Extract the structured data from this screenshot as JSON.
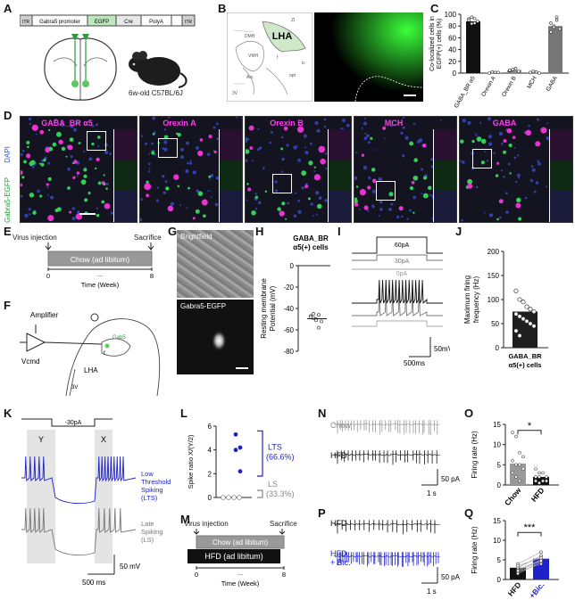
{
  "panel_letters": [
    "A",
    "B",
    "C",
    "D",
    "E",
    "F",
    "G",
    "H",
    "I",
    "J",
    "K",
    "L",
    "M",
    "N",
    "O",
    "P",
    "Q"
  ],
  "A": {
    "construct": [
      "ITR",
      "Gabra5 promoter",
      "EGFP",
      "Cre",
      "PolyA",
      "ITR"
    ],
    "mouse_label": "6w-old C57BL/6J"
  },
  "B": {
    "region_label": "LHA",
    "atlas_labels": [
      "VMH",
      "DMH",
      "Arc",
      "3V",
      "f",
      "opt",
      "ic",
      "ZI"
    ]
  },
  "C": {
    "chart_data": {
      "type": "bar",
      "categories": [
        "GABA_BR α5",
        "Orexin A",
        "Orexin B",
        "MCH",
        "GABA"
      ],
      "values": [
        88,
        1,
        5,
        2,
        80
      ],
      "points": [
        [
          92,
          95,
          85,
          88,
          90,
          84,
          93
        ],
        [
          0,
          2,
          1,
          1
        ],
        [
          4,
          6,
          8,
          3,
          5
        ],
        [
          1,
          3,
          2,
          0
        ],
        [
          70,
          80,
          90,
          75,
          85,
          78,
          95
        ]
      ],
      "ylabel": "Co-localized cells in EGFP(+) cells (%)",
      "yticks": [
        0,
        20,
        40,
        60,
        80,
        100
      ],
      "ylim": [
        0,
        100
      ]
    }
  },
  "D": {
    "side_labels": [
      "Gabra5-EGFP",
      "DAPI"
    ],
    "titles": [
      "GABA_BR α5",
      "Orexin A",
      "Orexin B",
      "MCH",
      "GABA"
    ]
  },
  "E": {
    "left_label": "Virus injection",
    "right_label": "Sacrifice",
    "bar_label": "Chow (ad libitum)",
    "start": "0",
    "end": "8",
    "dots": "...",
    "xlabel": "Time (Week)"
  },
  "F": {
    "labels": [
      "Amplifier",
      "Vcmd",
      "LHA",
      "3V",
      "Gab5",
      "f"
    ]
  },
  "G": {
    "top_label": "Brightfield",
    "bottom_label": "Gabra5-EGFP"
  },
  "H": {
    "title_line1": "GABA_BR",
    "title_line2": "α5(+) cells",
    "chart_data": {
      "type": "scatter",
      "categories": [
        "GABA_BR α5(+)"
      ],
      "values": [
        -47,
        -49,
        -50,
        -46,
        -52,
        -48,
        -45,
        -51,
        -58
      ],
      "ylabel": "Resting membrane Potential (mV)",
      "yticks": [
        0,
        -20,
        -40,
        -60,
        -80
      ],
      "ylim": [
        -80,
        0
      ]
    }
  },
  "I": {
    "steps": [
      "60pA",
      "30pA",
      "0pA"
    ],
    "scale_v": "50mV",
    "scale_t": "500ms"
  },
  "J": {
    "chart_data": {
      "type": "bar",
      "categories": [
        "GABA_BR α5(+) cells"
      ],
      "values": [
        75
      ],
      "points": [
        118,
        100,
        95,
        85,
        80,
        75,
        70,
        65,
        60,
        55,
        50,
        45,
        35,
        25
      ],
      "ylabel": "Maximum firing frequency (Hz)",
      "yticks": [
        0,
        50,
        100,
        150,
        200
      ],
      "ylim": [
        0,
        200
      ]
    }
  },
  "K": {
    "step_label": "-30pA",
    "region_y": "Y",
    "region_x": "X",
    "trace1_label": [
      "Low",
      "Threshold",
      "Spiking",
      "(LTS)"
    ],
    "trace2_label": [
      "Late",
      "Spiking",
      "(LS)"
    ],
    "scale_v": "50 mV",
    "scale_t": "500 ms"
  },
  "L": {
    "chart_data": {
      "type": "scatter",
      "ylabel": "Spike ratio X/(Y/2)",
      "yticks": [
        0,
        2,
        4,
        6
      ],
      "ylim": [
        0,
        6
      ],
      "lts_values": [
        5.3,
        4.2,
        4.0,
        2.2
      ],
      "ls_values": [
        0,
        0,
        0,
        0
      ]
    },
    "lts_label": "LTS",
    "lts_pct": "(66.6%)",
    "ls_label": "LS",
    "ls_pct": "(33.3%)"
  },
  "M": {
    "left_label": "Virus injection",
    "right_label": "Sacrifice",
    "bar1_label": "Chow (ad libitum)",
    "bar2_label": "HFD (ad libitum)",
    "start": "0",
    "end": "8",
    "dots": "...",
    "xlabel": "Time (Week)"
  },
  "N": {
    "trace1": "Chow",
    "trace2": "HFD",
    "scale_i": "50 pA",
    "scale_t": "1 s"
  },
  "O": {
    "significance": "*",
    "chart_data": {
      "type": "bar",
      "categories": [
        "Chow",
        "HFD"
      ],
      "values": [
        5.3,
        2.0
      ],
      "points": [
        [
          13,
          12,
          8,
          7,
          6,
          5,
          5,
          4,
          3,
          2,
          1
        ],
        [
          4,
          3,
          3,
          2,
          2,
          2,
          1,
          1,
          1,
          0.5
        ]
      ],
      "ylabel": "Firing rate (Hz)",
      "yticks": [
        0,
        5,
        10,
        15
      ],
      "ylim": [
        0,
        15
      ]
    }
  },
  "P": {
    "trace1": "HFD",
    "trace2_line1": "HFD",
    "trace2_line2": "+ Bic.",
    "scale_i": "50 pA",
    "scale_t": "1 s"
  },
  "Q": {
    "significance": "***",
    "chart_data": {
      "type": "bar",
      "categories": [
        "HFD",
        "+Bic."
      ],
      "values": [
        3.0,
        5.3
      ],
      "pairs": [
        [
          2,
          4
        ],
        [
          3,
          6
        ],
        [
          4,
          7
        ],
        [
          2.5,
          5
        ],
        [
          3,
          6
        ],
        [
          1.5,
          4.5
        ],
        [
          3.5,
          5.5
        ],
        [
          2.2,
          4.8
        ]
      ],
      "ylabel": "Firing rate (Hz)",
      "yticks": [
        0,
        5,
        10,
        15
      ],
      "ylim": [
        0,
        15
      ]
    }
  }
}
